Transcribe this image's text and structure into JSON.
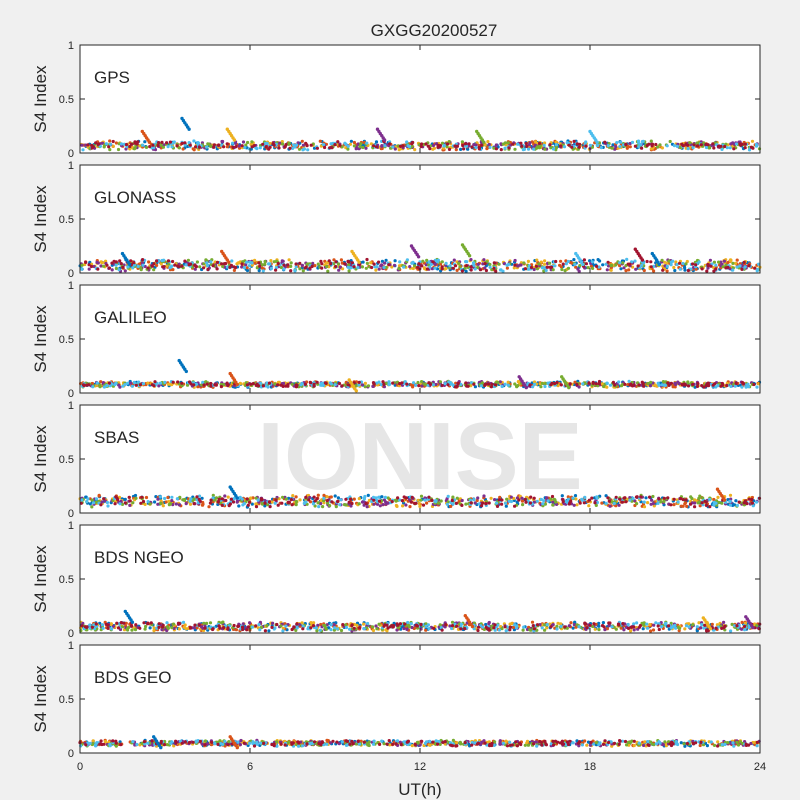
{
  "figure": {
    "title": "GXGG20200527",
    "xlabel": "UT(h)",
    "watermark": "IONISE"
  },
  "chart_data": {
    "type": "scatter",
    "title": "GXGG20200527",
    "xlabel": "UT(h)",
    "ylabel": "S4 Index",
    "xlim": [
      0,
      24
    ],
    "ylim": [
      0,
      1
    ],
    "xticks": [
      "0",
      "6",
      "12",
      "18",
      "24"
    ],
    "yticks": [
      "0",
      "0.5",
      "1"
    ],
    "grid": false,
    "palette": [
      "#0072BD",
      "#D95319",
      "#EDB120",
      "#7E2F8E",
      "#77AC30",
      "#4DBEEE",
      "#A2142F"
    ],
    "panels": [
      {
        "label": "GPS",
        "baseline_s4": 0.07,
        "noise_s4": 0.03,
        "spikes": [
          {
            "x": 3.6,
            "y": 0.32
          },
          {
            "x": 2.2,
            "y": 0.2
          },
          {
            "x": 5.2,
            "y": 0.22
          },
          {
            "x": 10.5,
            "y": 0.22
          },
          {
            "x": 14.0,
            "y": 0.2
          },
          {
            "x": 18.0,
            "y": 0.2
          }
        ]
      },
      {
        "label": "GLONASS",
        "baseline_s4": 0.07,
        "noise_s4": 0.04,
        "spikes": [
          {
            "x": 1.5,
            "y": 0.18
          },
          {
            "x": 5.0,
            "y": 0.2
          },
          {
            "x": 9.6,
            "y": 0.2
          },
          {
            "x": 11.7,
            "y": 0.25
          },
          {
            "x": 13.5,
            "y": 0.26
          },
          {
            "x": 17.5,
            "y": 0.18
          },
          {
            "x": 19.6,
            "y": 0.22
          },
          {
            "x": 20.2,
            "y": 0.18
          }
        ]
      },
      {
        "label": "GALILEO",
        "baseline_s4": 0.08,
        "noise_s4": 0.02,
        "spikes": [
          {
            "x": 3.5,
            "y": 0.3
          },
          {
            "x": 5.3,
            "y": 0.18
          },
          {
            "x": 9.5,
            "y": 0.12
          },
          {
            "x": 15.5,
            "y": 0.15
          },
          {
            "x": 17.0,
            "y": 0.15
          }
        ]
      },
      {
        "label": "SBAS",
        "baseline_s4": 0.11,
        "noise_s4": 0.04,
        "spikes": [
          {
            "x": 5.3,
            "y": 0.24
          },
          {
            "x": 22.5,
            "y": 0.22
          }
        ]
      },
      {
        "label": "BDS NGEO",
        "baseline_s4": 0.06,
        "noise_s4": 0.03,
        "spikes": [
          {
            "x": 1.6,
            "y": 0.2
          },
          {
            "x": 13.6,
            "y": 0.16
          },
          {
            "x": 22.0,
            "y": 0.14
          },
          {
            "x": 23.5,
            "y": 0.15
          }
        ]
      },
      {
        "label": "BDS GEO",
        "baseline_s4": 0.09,
        "noise_s4": 0.02,
        "spikes": [
          {
            "x": 2.6,
            "y": 0.15
          },
          {
            "x": 5.3,
            "y": 0.15
          }
        ]
      }
    ]
  }
}
